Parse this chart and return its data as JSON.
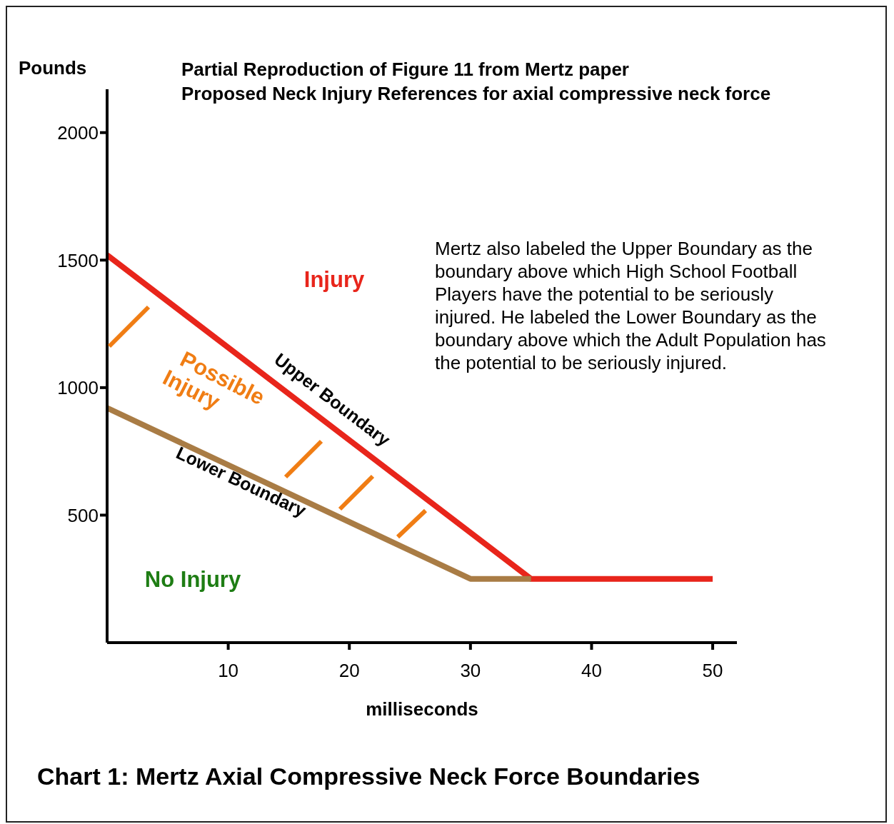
{
  "chart_data": {
    "type": "line",
    "title": "Partial Reproduction of Figure 11 from Mertz paper",
    "subtitle": "Proposed Neck Injury References for axial compressive neck force",
    "xlabel": "milliseconds",
    "ylabel": "Pounds",
    "series": [
      {
        "name": "Upper Boundary",
        "color": "#e8251b",
        "x": [
          0,
          35,
          50
        ],
        "values": [
          1520,
          250,
          250
        ]
      },
      {
        "name": "Lower Boundary",
        "color": "#a97c45",
        "x": [
          0,
          30,
          35
        ],
        "values": [
          920,
          250,
          250
        ]
      }
    ],
    "xlim": [
      0,
      52
    ],
    "ylim": [
      0,
      2170
    ],
    "xticks": [
      10,
      20,
      30,
      40,
      50
    ],
    "yticks": [
      500,
      1000,
      1500,
      2000
    ],
    "marker": "none",
    "line_style": "solid",
    "annotations": [
      "Injury",
      "Possible Injury",
      "No Injury",
      "Mertz also labeled the Upper Boundary as the boundary above which High School Football Players have the potential to be seriously injured. He labeled the Lower Boundary as the boundary above which the Adult Population has the potential to be seriously injured.",
      "Chart 1: Mertz Axial Compressive Neck Force Boundaries"
    ]
  }
}
